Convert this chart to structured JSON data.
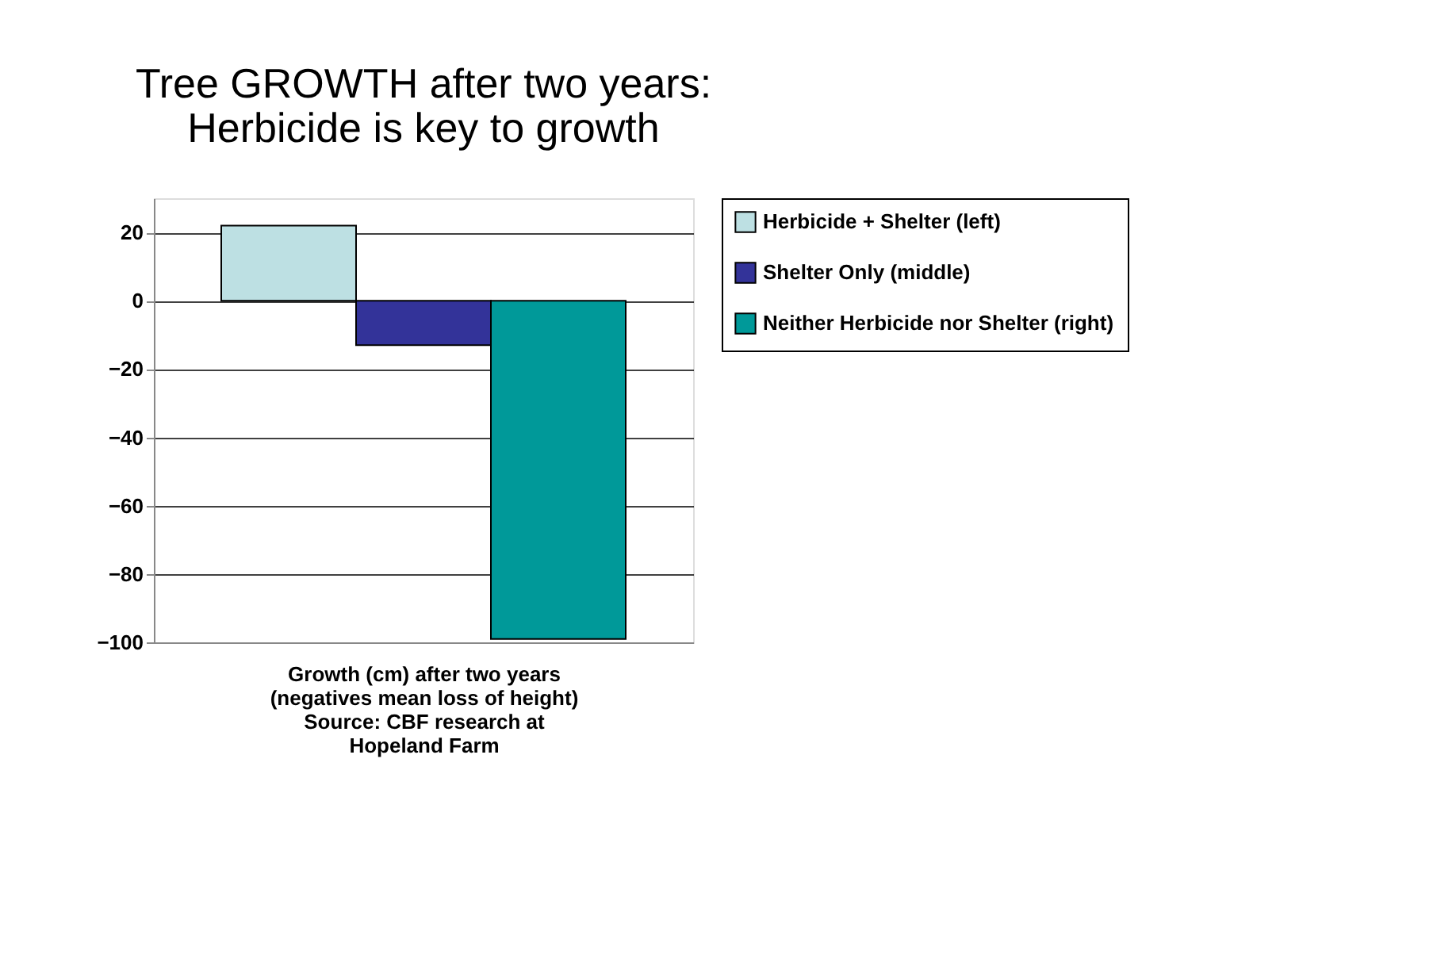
{
  "chart_data": {
    "type": "bar",
    "title": "Tree GROWTH after two years:\nHerbicide is key to growth",
    "xlabel": "Growth (cm) after two years\n(negatives mean loss of height)\nSource: CBF research at\nHopeland Farm",
    "categories": [
      null
    ],
    "series": [
      {
        "name": "Herbicide + Shelter (left)",
        "color": "#bde0e3",
        "values": [
          22
        ]
      },
      {
        "name": "Shelter Only (middle)",
        "color": "#333399",
        "values": [
          -13
        ]
      },
      {
        "name": "Neither Herbicide nor Shelter (right)",
        "color": "#009999",
        "values": [
          -99
        ]
      }
    ],
    "ylim": [
      -100,
      30
    ],
    "yticks": [
      -100,
      -80,
      -60,
      -40,
      -20,
      0,
      20
    ],
    "grid": "y",
    "legend": "right"
  }
}
